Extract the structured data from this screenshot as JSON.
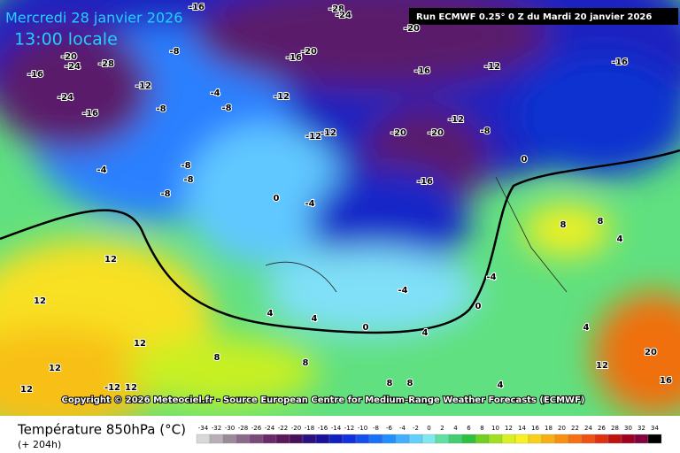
{
  "header": {
    "date": "Mercredi 28 janvier 2026",
    "time": "13:00 locale",
    "run": "Run ECMWF 0.25° 0 Z du Mardi 20 janvier 2026"
  },
  "copyright": "Copyright © 2026 Meteociel.fr - Source European Centre for Medium-Range Weather Forecasts (ECMWF)",
  "footer": {
    "title": "Température 850hPa (°C)",
    "lead": "(+ 204h)"
  },
  "colorbar": {
    "ticks": [
      -34,
      -32,
      -30,
      -28,
      -26,
      -24,
      -22,
      -20,
      -18,
      -16,
      -14,
      -12,
      -10,
      -8,
      -6,
      -4,
      -2,
      0,
      2,
      4,
      6,
      8,
      10,
      12,
      14,
      16,
      18,
      20,
      22,
      24,
      26,
      28,
      30,
      32,
      34
    ],
    "colors": [
      "#d8d8d8",
      "#b8b0b8",
      "#9a8a9a",
      "#8a6a8a",
      "#7a4a7a",
      "#6a2a6a",
      "#5a1a5a",
      "#48105a",
      "#2a1080",
      "#1a10a0",
      "#1020c0",
      "#1030e0",
      "#1450f0",
      "#1a70f8",
      "#2090ff",
      "#40b0ff",
      "#60d0ff",
      "#80e8f0",
      "#60e0a0",
      "#40d070",
      "#30c040",
      "#70d020",
      "#a0e020",
      "#d8f020",
      "#f8f020",
      "#f8d018",
      "#f8b010",
      "#f89010",
      "#f87010",
      "#f05010",
      "#e03010",
      "#c01010",
      "#a00020",
      "#800040",
      "#000000"
    ]
  },
  "map_labels": [
    -16,
    -20,
    -24,
    -28,
    -24,
    -16,
    -12,
    -8,
    -8,
    -4,
    -8,
    -8,
    -8,
    -4,
    -8,
    -12,
    -12,
    -12,
    -16,
    -20,
    -20,
    -16,
    -20,
    -20,
    -12,
    -16,
    -12,
    -16,
    -8,
    0,
    0,
    -4,
    8,
    8,
    4,
    12,
    12,
    8,
    12,
    12,
    12,
    -12,
    12,
    4,
    4,
    -4,
    0,
    4,
    8,
    8,
    8,
    4,
    20,
    16,
    12,
    4,
    -4,
    0,
    -16,
    -28,
    -24
  ]
}
